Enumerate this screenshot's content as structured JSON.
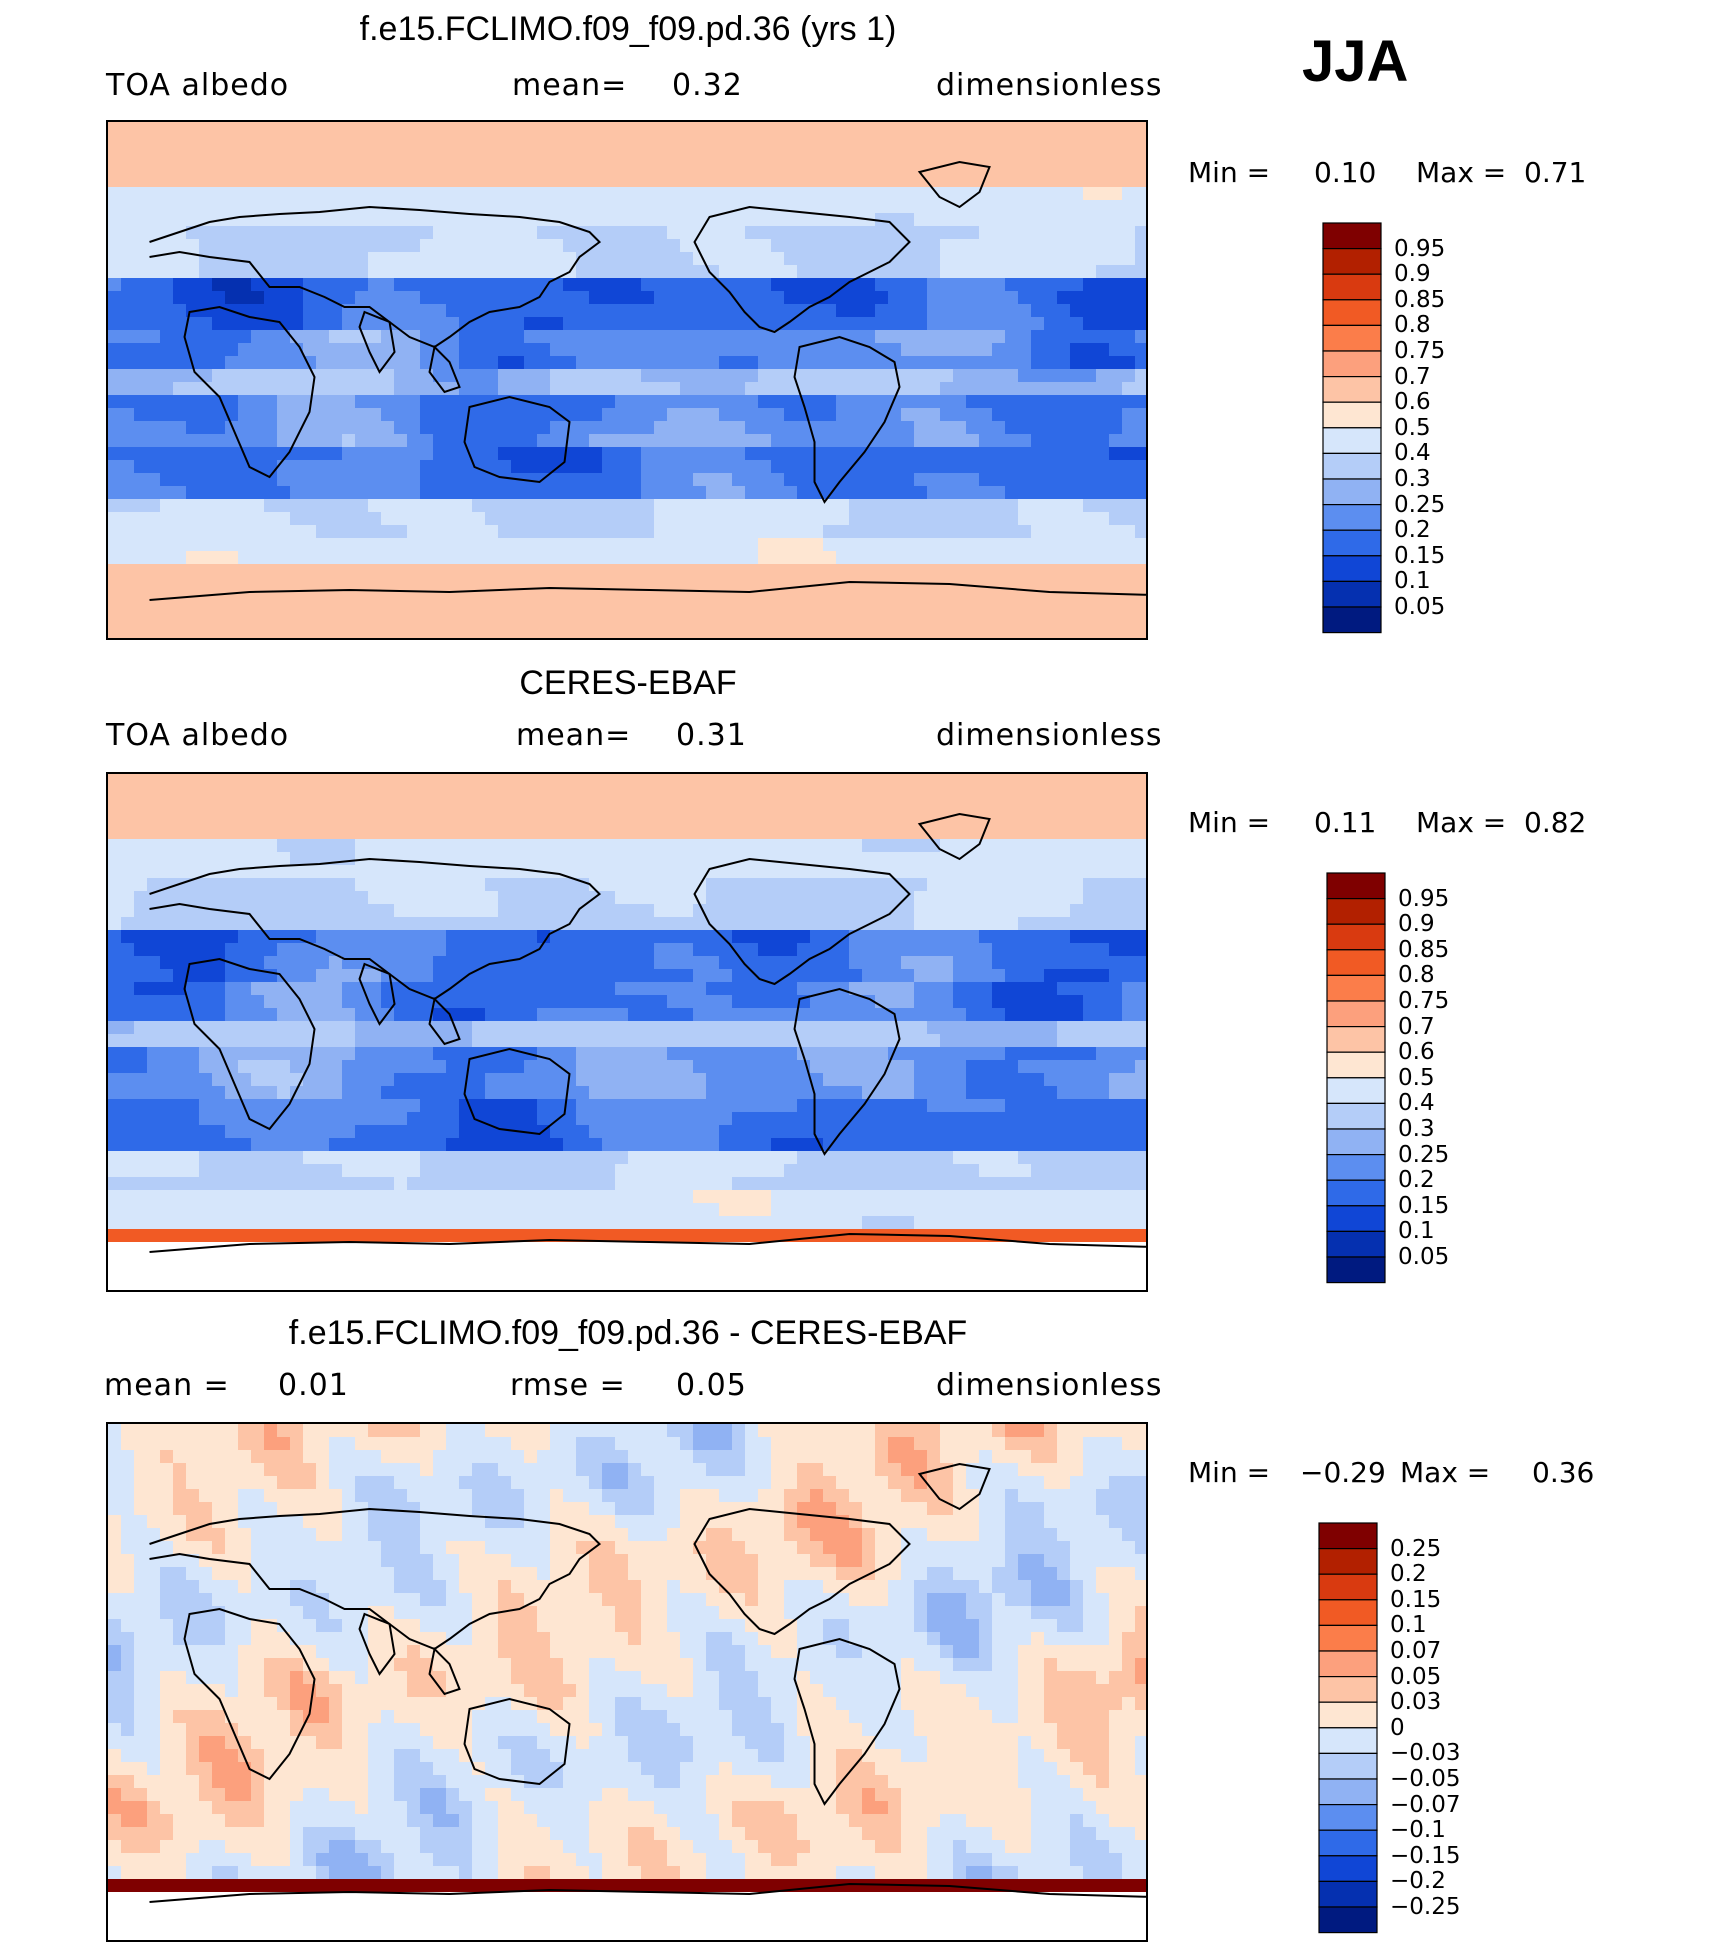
{
  "season": "JJA",
  "panels": [
    {
      "id": "model",
      "title": "f.e15.FCLIMO.f09_f09.pd.36 (yrs 1)",
      "left": "TOA  albedo",
      "center_label": "mean=",
      "center_value": "0.32",
      "right": "dimensionless",
      "min_label": "Min  =",
      "min_value": "0.10",
      "max_label": "Max  =",
      "max_value": "0.71",
      "palette": "albedo"
    },
    {
      "id": "obs",
      "title": "CERES-EBAF",
      "left": "TOA  albedo",
      "center_label": "mean=",
      "center_value": "0.31",
      "right": "dimensionless",
      "min_label": "Min  =",
      "min_value": "0.11",
      "max_label": "Max  =",
      "max_value": "0.82",
      "palette": "albedo"
    },
    {
      "id": "diff",
      "title": "f.e15.FCLIMO.f09_f09.pd.36 - CERES-EBAF",
      "left": "mean  =",
      "left_value": "0.01",
      "center_label": "rmse  =",
      "center_value": "0.05",
      "right": "dimensionless",
      "min_label": "Min  =",
      "min_value": "−0.29",
      "max_label": "Max  =",
      "max_value": "0.36",
      "palette": "diff"
    }
  ],
  "colorbars": {
    "albedo": {
      "labels": [
        "0.95",
        "0.9",
        "0.85",
        "0.8",
        "0.75",
        "0.7",
        "0.6",
        "0.5",
        "0.4",
        "0.3",
        "0.25",
        "0.2",
        "0.15",
        "0.1",
        "0.05"
      ],
      "colors": [
        "#7f0000",
        "#b22000",
        "#d93a10",
        "#f15a24",
        "#fb7d4a",
        "#fca07d",
        "#fdc4a6",
        "#fee6d2",
        "#d6e6fb",
        "#b4cdf8",
        "#90b2f3",
        "#5c8ef0",
        "#2f6ae8",
        "#1046d6",
        "#0530b0",
        "#001a80"
      ]
    },
    "diff": {
      "labels": [
        "0.25",
        "0.2",
        "0.15",
        "0.1",
        "0.07",
        "0.05",
        "0.03",
        "0",
        "−0.03",
        "−0.05",
        "−0.07",
        "−0.1",
        "−0.15",
        "−0.2",
        "−0.25"
      ],
      "colors": [
        "#7f0000",
        "#b22000",
        "#d93a10",
        "#f15a24",
        "#fb7d4a",
        "#fca07d",
        "#fdc4a6",
        "#fee6d2",
        "#d6e6fb",
        "#b4cdf8",
        "#90b2f3",
        "#5c8ef0",
        "#2f6ae8",
        "#1046d6",
        "#0530b0",
        "#001a80"
      ]
    }
  }
}
